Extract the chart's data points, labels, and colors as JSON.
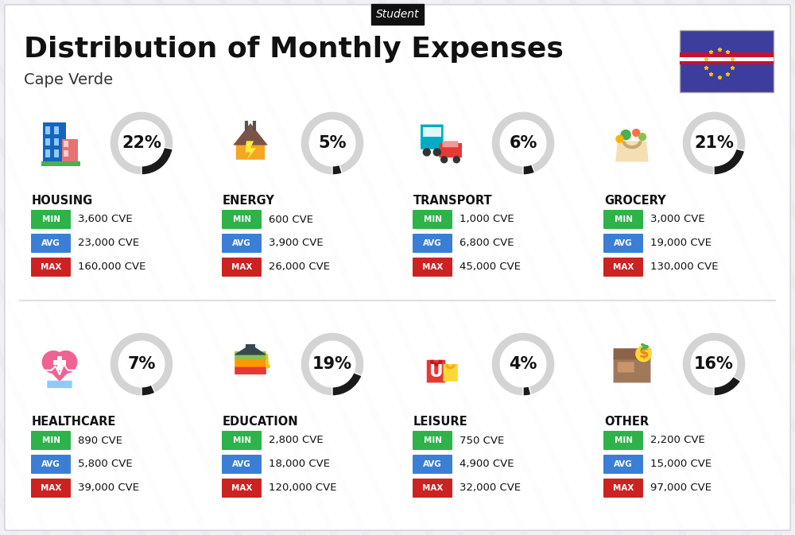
{
  "title": "Distribution of Monthly Expenses",
  "subtitle": "Cape Verde",
  "header_label": "Student",
  "bg_color": "#f0f0f5",
  "categories": [
    {
      "name": "HOUSING",
      "pct": 22,
      "icon_type": "housing",
      "min_val": "3,600 CVE",
      "avg_val": "23,000 CVE",
      "max_val": "160,000 CVE",
      "row": 0,
      "col": 0
    },
    {
      "name": "ENERGY",
      "pct": 5,
      "icon_type": "energy",
      "min_val": "600 CVE",
      "avg_val": "3,900 CVE",
      "max_val": "26,000 CVE",
      "row": 0,
      "col": 1
    },
    {
      "name": "TRANSPORT",
      "pct": 6,
      "icon_type": "transport",
      "min_val": "1,000 CVE",
      "avg_val": "6,800 CVE",
      "max_val": "45,000 CVE",
      "row": 0,
      "col": 2
    },
    {
      "name": "GROCERY",
      "pct": 21,
      "icon_type": "grocery",
      "min_val": "3,000 CVE",
      "avg_val": "19,000 CVE",
      "max_val": "130,000 CVE",
      "row": 0,
      "col": 3
    },
    {
      "name": "HEALTHCARE",
      "pct": 7,
      "icon_type": "healthcare",
      "min_val": "890 CVE",
      "avg_val": "5,800 CVE",
      "max_val": "39,000 CVE",
      "row": 1,
      "col": 0
    },
    {
      "name": "EDUCATION",
      "pct": 19,
      "icon_type": "education",
      "min_val": "2,800 CVE",
      "avg_val": "18,000 CVE",
      "max_val": "120,000 CVE",
      "row": 1,
      "col": 1
    },
    {
      "name": "LEISURE",
      "pct": 4,
      "icon_type": "leisure",
      "min_val": "750 CVE",
      "avg_val": "4,900 CVE",
      "max_val": "32,000 CVE",
      "row": 1,
      "col": 2
    },
    {
      "name": "OTHER",
      "pct": 16,
      "icon_type": "other",
      "min_val": "2,200 CVE",
      "avg_val": "15,000 CVE",
      "max_val": "97,000 CVE",
      "row": 1,
      "col": 3
    }
  ],
  "min_color": "#2db34a",
  "avg_color": "#3a7fd5",
  "max_color": "#cc2222",
  "circle_bg": "#d8d8d8",
  "circle_arc_color": "#1a1a1a",
  "flag_blue": "#3d3d9e",
  "flag_red": "#c8102e",
  "flag_white": "#ffffff",
  "flag_yellow": "#f5c518"
}
